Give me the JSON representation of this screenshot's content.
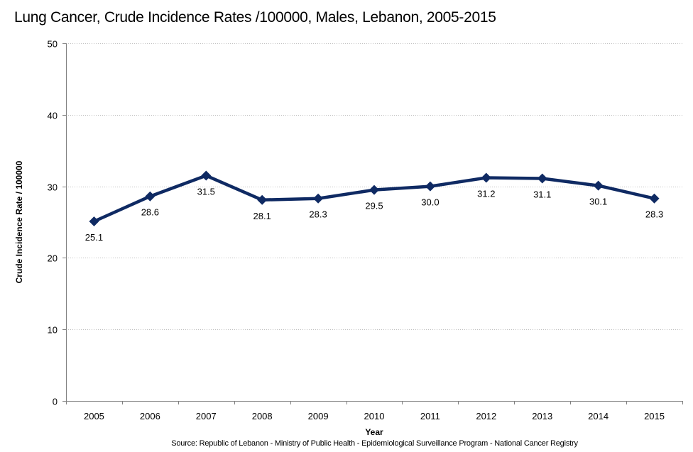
{
  "chart_data": {
    "type": "line",
    "title": "Lung Cancer, Crude Incidence Rates /100000,  Males, Lebanon, 2005-2015",
    "xlabel": "Year",
    "ylabel": "Crude Incidence Rate / 100000",
    "categories": [
      "2005",
      "2006",
      "2007",
      "2008",
      "2009",
      "2010",
      "2011",
      "2012",
      "2013",
      "2014",
      "2015"
    ],
    "series": [
      {
        "name": "Males",
        "values": [
          25.1,
          28.6,
          31.5,
          28.1,
          28.3,
          29.5,
          30.0,
          31.2,
          31.1,
          30.1,
          28.3
        ],
        "labels": [
          "25.1",
          "28.6",
          "31.5",
          "28.1",
          "28.3",
          "29.5",
          "30.0",
          "31.2",
          "31.1",
          "30.1",
          "28.3"
        ],
        "label_position": "below",
        "color": "#0f2a63",
        "marker": "diamond"
      }
    ],
    "ylim": [
      0,
      50
    ],
    "yticks": [
      0,
      10,
      20,
      30,
      40,
      50
    ],
    "ytick_labels": [
      "0",
      "10",
      "20",
      "30",
      "40",
      "50"
    ],
    "grid": true,
    "legend": "none",
    "source": "Source:  Republic of Lebanon - Ministry of Public Health - Epidemiological Surveillance Program - National Cancer Registry"
  }
}
